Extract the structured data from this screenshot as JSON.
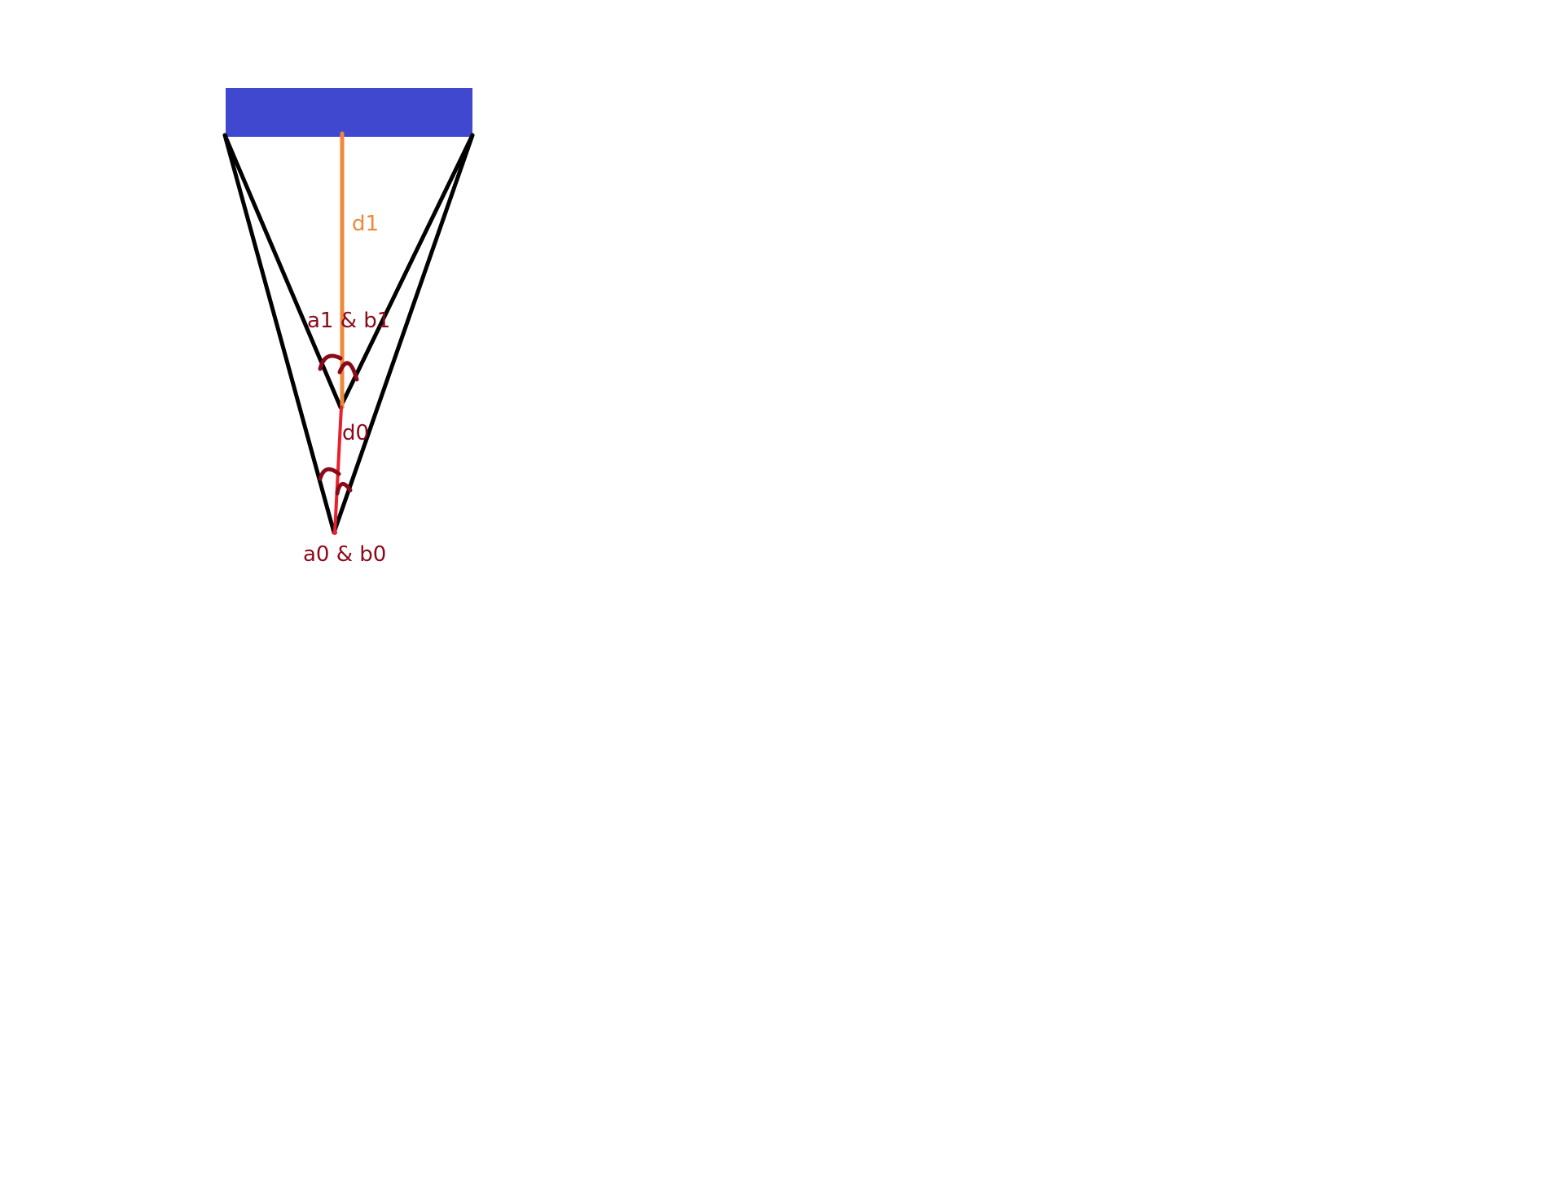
{
  "diagram": {
    "labels": {
      "d1": "d1",
      "a1_b1": "a1 & b1",
      "d0": "d0",
      "a0_b0": "a0 & b0"
    },
    "colors": {
      "bar": "#4048d0",
      "lines": "#000000",
      "d1_line": "#f0873a",
      "d1_text": "#f0873a",
      "d0_line": "#e8202e",
      "dark_red": "#8b0a1a",
      "background": "#ffffff"
    }
  }
}
